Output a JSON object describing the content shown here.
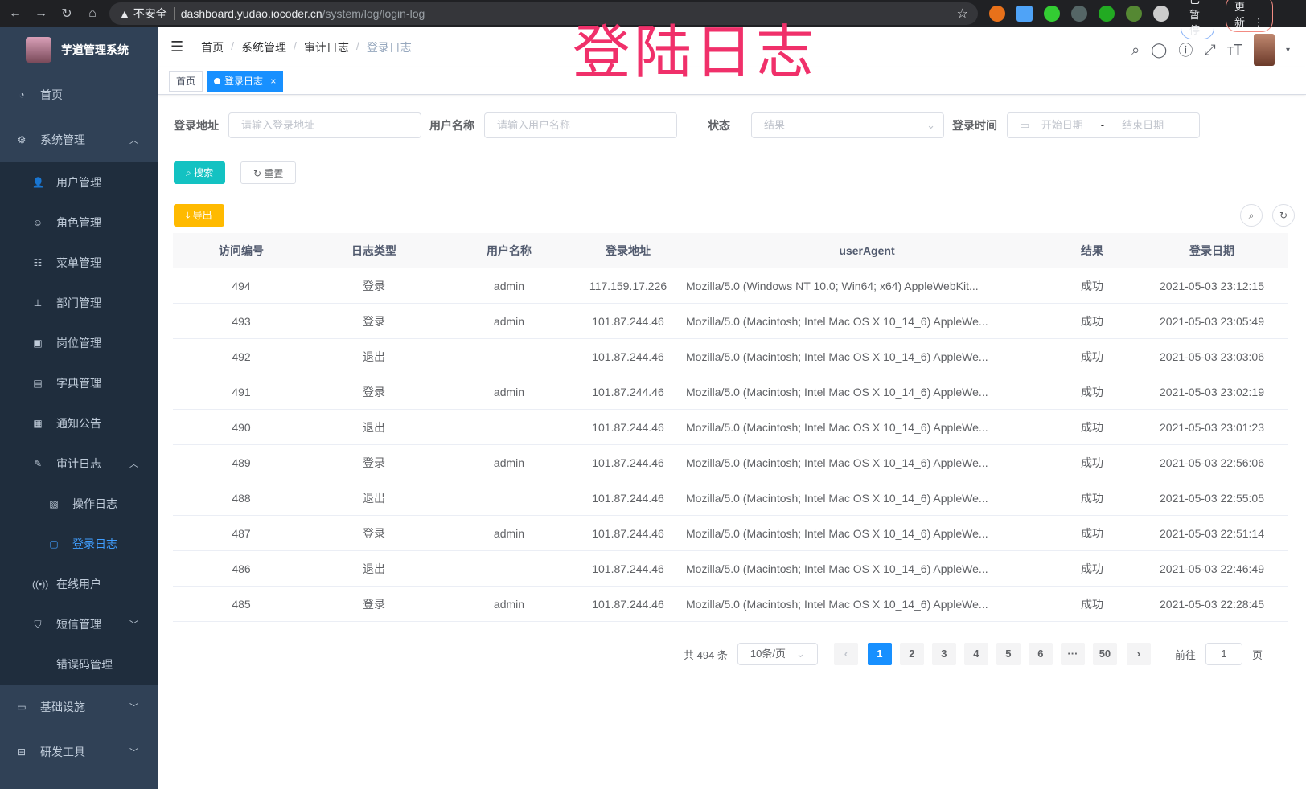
{
  "browser": {
    "security": "不安全",
    "host": "dashboard.yudao.iocoder.cn",
    "path": "/system/log/login-log",
    "profile": "已暂停",
    "update": "更新"
  },
  "app": {
    "title": "芋道管理系统"
  },
  "sidebar": {
    "items": [
      {
        "label": "首页",
        "icon": "dashboard-icon",
        "level": 0
      },
      {
        "label": "系统管理",
        "icon": "gear-icon",
        "level": 0,
        "arrow": "^"
      },
      {
        "label": "用户管理",
        "icon": "user-icon",
        "level": 1
      },
      {
        "label": "角色管理",
        "icon": "role-icon",
        "level": 1
      },
      {
        "label": "菜单管理",
        "icon": "menu-icon",
        "level": 1
      },
      {
        "label": "部门管理",
        "icon": "tree-icon",
        "level": 1
      },
      {
        "label": "岗位管理",
        "icon": "post-icon",
        "level": 1
      },
      {
        "label": "字典管理",
        "icon": "dict-icon",
        "level": 1
      },
      {
        "label": "通知公告",
        "icon": "message-icon",
        "level": 1
      },
      {
        "label": "审计日志",
        "icon": "edit-icon",
        "level": 1,
        "arrow": "^"
      },
      {
        "label": "操作日志",
        "icon": "form-icon",
        "level": 2
      },
      {
        "label": "登录日志",
        "icon": "logininfor-icon",
        "level": 2,
        "active": true
      },
      {
        "label": "在线用户",
        "icon": "online-icon",
        "level": 1
      },
      {
        "label": "短信管理",
        "icon": "shield-icon",
        "level": 1,
        "arrow": "v"
      },
      {
        "label": "错误码管理",
        "icon": "code-icon",
        "level": 1
      },
      {
        "label": "基础设施",
        "icon": "monitor-icon",
        "level": 0,
        "arrow": "v"
      },
      {
        "label": "研发工具",
        "icon": "tool-icon",
        "level": 0,
        "arrow": "v"
      }
    ]
  },
  "header": {
    "breadcrumb": [
      "首页",
      "系统管理",
      "审计日志",
      "登录日志"
    ],
    "watermark": "登陆日志"
  },
  "tags": [
    {
      "label": "首页"
    },
    {
      "label": "登录日志",
      "active": true,
      "close": "×"
    }
  ],
  "filters": {
    "addr_label": "登录地址",
    "addr_ph": "请输入登录地址",
    "user_label": "用户名称",
    "user_ph": "请输入用户名称",
    "status_label": "状态",
    "status_ph": "结果",
    "time_label": "登录时间",
    "start_ph": "开始日期",
    "sep": "-",
    "end_ph": "结束日期"
  },
  "buttons": {
    "search": "搜索",
    "reset": "重置",
    "export": "导出"
  },
  "colors": {
    "sidebar": "#304156",
    "primary": "#1890ff",
    "search": "#13c2c2",
    "export": "#ffba00",
    "active_menu": "#409eff"
  },
  "table": {
    "columns": [
      "访问编号",
      "日志类型",
      "用户名称",
      "登录地址",
      "userAgent",
      "结果",
      "登录日期"
    ],
    "rows": [
      [
        "494",
        "登录",
        "admin",
        "117.159.17.226",
        "Mozilla/5.0 (Windows NT 10.0; Win64; x64) AppleWebKit...",
        "成功",
        "2021-05-03 23:12:15"
      ],
      [
        "493",
        "登录",
        "admin",
        "101.87.244.46",
        "Mozilla/5.0 (Macintosh; Intel Mac OS X 10_14_6) AppleWe...",
        "成功",
        "2021-05-03 23:05:49"
      ],
      [
        "492",
        "退出",
        "",
        "101.87.244.46",
        "Mozilla/5.0 (Macintosh; Intel Mac OS X 10_14_6) AppleWe...",
        "成功",
        "2021-05-03 23:03:06"
      ],
      [
        "491",
        "登录",
        "admin",
        "101.87.244.46",
        "Mozilla/5.0 (Macintosh; Intel Mac OS X 10_14_6) AppleWe...",
        "成功",
        "2021-05-03 23:02:19"
      ],
      [
        "490",
        "退出",
        "",
        "101.87.244.46",
        "Mozilla/5.0 (Macintosh; Intel Mac OS X 10_14_6) AppleWe...",
        "成功",
        "2021-05-03 23:01:23"
      ],
      [
        "489",
        "登录",
        "admin",
        "101.87.244.46",
        "Mozilla/5.0 (Macintosh; Intel Mac OS X 10_14_6) AppleWe...",
        "成功",
        "2021-05-03 22:56:06"
      ],
      [
        "488",
        "退出",
        "",
        "101.87.244.46",
        "Mozilla/5.0 (Macintosh; Intel Mac OS X 10_14_6) AppleWe...",
        "成功",
        "2021-05-03 22:55:05"
      ],
      [
        "487",
        "登录",
        "admin",
        "101.87.244.46",
        "Mozilla/5.0 (Macintosh; Intel Mac OS X 10_14_6) AppleWe...",
        "成功",
        "2021-05-03 22:51:14"
      ],
      [
        "486",
        "退出",
        "",
        "101.87.244.46",
        "Mozilla/5.0 (Macintosh; Intel Mac OS X 10_14_6) AppleWe...",
        "成功",
        "2021-05-03 22:46:49"
      ],
      [
        "485",
        "登录",
        "admin",
        "101.87.244.46",
        "Mozilla/5.0 (Macintosh; Intel Mac OS X 10_14_6) AppleWe...",
        "成功",
        "2021-05-03 22:28:45"
      ]
    ]
  },
  "pagination": {
    "total": "共 494 条",
    "page_size": "10条/页",
    "pages": [
      "1",
      "2",
      "3",
      "4",
      "5",
      "6",
      "···",
      "50"
    ],
    "current": "1",
    "goto_label": "前往",
    "goto_value": "1",
    "goto_suffix": "页",
    "prev": "‹",
    "next": "›"
  }
}
